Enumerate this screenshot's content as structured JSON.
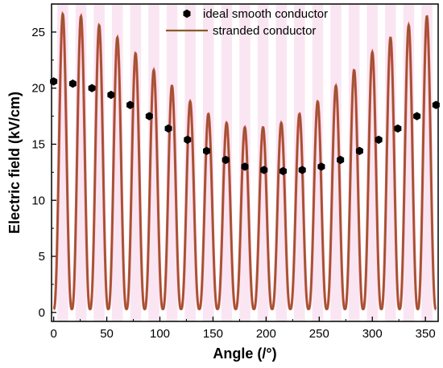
{
  "chart_data": {
    "type": "line",
    "xlabel": "Angle (/°)",
    "ylabel": "Electric field (kV/cm)",
    "xlim": [
      -2,
      362
    ],
    "ylim": [
      -0.8,
      27.5
    ],
    "xticks": [
      0,
      50,
      100,
      150,
      200,
      250,
      300,
      350
    ],
    "yticks": [
      0,
      5,
      10,
      15,
      20,
      25
    ],
    "legend_position": "top-center",
    "series": [
      {
        "name": "ideal smooth conductor",
        "kind": "scatter",
        "marker": "hexagon",
        "color": "#000000",
        "x": [
          0,
          18,
          36,
          54,
          72,
          90,
          108,
          126,
          144,
          162,
          180,
          198,
          216,
          234,
          252,
          270,
          288,
          306,
          324,
          342,
          360
        ],
        "y": [
          20.6,
          20.4,
          20.0,
          19.4,
          18.5,
          17.5,
          16.4,
          15.4,
          14.4,
          13.6,
          13.0,
          12.7,
          12.6,
          12.7,
          13.0,
          13.6,
          14.4,
          15.4,
          16.4,
          17.5,
          18.5
        ]
      },
      {
        "name": "stranded conductor",
        "kind": "line",
        "color": "#8b5a2b",
        "accent_color": "#d62728",
        "band_color": "#f6d6ea",
        "period_deg": 17.14,
        "phase_deg": 8.57,
        "minimum": 0.3,
        "x": [
          8.57,
          25.71,
          42.86,
          60.0,
          77.14,
          94.29,
          111.43,
          128.57,
          145.71,
          162.86,
          180.0,
          197.14,
          214.29,
          231.43,
          248.57,
          265.71,
          282.86,
          300.0,
          317.14,
          334.29,
          351.43
        ],
        "y": [
          26.6,
          26.4,
          25.6,
          24.5,
          23.1,
          21.6,
          20.2,
          18.8,
          17.7,
          16.9,
          16.5,
          16.5,
          16.9,
          17.7,
          18.8,
          20.2,
          21.6,
          23.2,
          24.5,
          25.6,
          26.4
        ]
      }
    ]
  }
}
